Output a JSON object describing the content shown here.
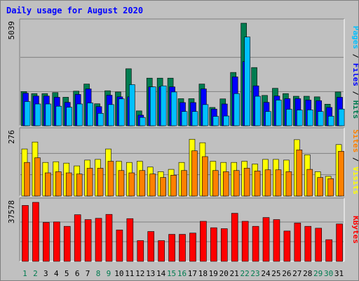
{
  "chart_data": {
    "type": "bar",
    "title": "Daily usage for August 2020",
    "colors": {
      "hits": "#007c50",
      "files": "#0000ff",
      "pages": "#00c0ff",
      "visits": "#ffff00",
      "sites": "#ff8000",
      "kbytes": "#ff0000",
      "weekend_label": "#007c50",
      "weekday_label": "#000000"
    },
    "days": [
      "1",
      "2",
      "3",
      "4",
      "5",
      "6",
      "7",
      "8",
      "9",
      "10",
      "11",
      "12",
      "13",
      "14",
      "15",
      "16",
      "17",
      "18",
      "19",
      "20",
      "21",
      "22",
      "23",
      "24",
      "25",
      "26",
      "27",
      "28",
      "29",
      "30",
      "31"
    ],
    "weekend_days": [
      "1",
      "2",
      "8",
      "9",
      "15",
      "16",
      "22",
      "23",
      "29",
      "30"
    ],
    "panels": [
      {
        "key": "hits_files_pages",
        "ymax_label": "5039",
        "ymax": 5039,
        "right_label_parts": [
          {
            "text": "Pages",
            "color": "#00c0ff"
          },
          {
            "text": " / ",
            "color": "#000000"
          },
          {
            "text": "Files",
            "color": "#0000ff"
          },
          {
            "text": " / ",
            "color": "#000000"
          },
          {
            "text": "Hits",
            "color": "#007c50"
          }
        ],
        "series": [
          {
            "key": "hits",
            "values": [
              1680,
              1580,
              1580,
              1630,
              1400,
              1700,
              2050,
              1080,
              1720,
              1660,
              2800,
              730,
              2340,
              2340,
              2340,
              1330,
              1330,
              2050,
              900,
              1320,
              2620,
              5039,
              2860,
              1490,
              1840,
              1580,
              1450,
              1450,
              1420,
              1060,
              1660
            ]
          },
          {
            "key": "files",
            "values": [
              1600,
              1460,
              1460,
              1400,
              1150,
              1540,
              1810,
              940,
              1500,
              1420,
              1420,
              520,
              1910,
              1910,
              1910,
              1140,
              1140,
              1810,
              820,
              1070,
              2400,
              3150,
              1960,
              1150,
              1460,
              1330,
              1330,
              1260,
              1230,
              900,
              1400
            ]
          },
          {
            "key": "pages",
            "values": [
              1190,
              1070,
              1070,
              960,
              910,
              1070,
              1120,
              610,
              1040,
              1320,
              2020,
              410,
              1910,
              1960,
              1660,
              700,
              700,
              1040,
              460,
              480,
              1580,
              4360,
              1450,
              700,
              1260,
              810,
              770,
              780,
              700,
              470,
              820
            ]
          }
        ]
      },
      {
        "key": "visits_sites",
        "ymax_label": "276",
        "ymax": 276,
        "right_label_parts": [
          {
            "text": "Sites",
            "color": "#ff8000"
          },
          {
            "text": " / ",
            "color": "#000000"
          },
          {
            "text": "Visits",
            "color": "#ffff00"
          }
        ],
        "series": [
          {
            "key": "visits",
            "values": [
              203,
              233,
              145,
              148,
              142,
              130,
              155,
              158,
              203,
              150,
              145,
              150,
              125,
              105,
              115,
              145,
              245,
              230,
              150,
              145,
              145,
              150,
              138,
              158,
              158,
              155,
              243,
              178,
              105,
              85,
              222
            ]
          },
          {
            "key": "sites",
            "values": [
              145,
              165,
              100,
              105,
              100,
              95,
              120,
              120,
              150,
              110,
              100,
              110,
              95,
              80,
              90,
              110,
              195,
              170,
              110,
              105,
              110,
              120,
              108,
              113,
              113,
              105,
              199,
              115,
              80,
              75,
              193
            ]
          }
        ]
      },
      {
        "key": "kbytes",
        "ymax_label": "37578",
        "ymax": 37578,
        "right_label_parts": [
          {
            "text": "KBytes",
            "color": "#ff0000"
          }
        ],
        "series": [
          {
            "key": "kbytes",
            "values": [
              35600,
              37578,
              24800,
              25100,
              22300,
              29700,
              26600,
              27400,
              29900,
              20000,
              27200,
              13200,
              19000,
              13200,
              17200,
              17200,
              18000,
              25500,
              21400,
              20800,
              30600,
              25500,
              22300,
              27900,
              26600,
              19300,
              24400,
              22300,
              21100,
              13800,
              23800
            ]
          }
        ]
      }
    ]
  }
}
